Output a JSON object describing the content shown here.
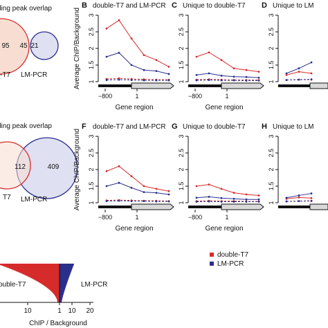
{
  "colors": {
    "double_t7": "#d62b2b",
    "lm_pcr": "#2b2f8c",
    "venn_left_fill": "#f8ded2",
    "venn_right_fill": "#d9daf0",
    "venn_left_stroke": "#d62b2b",
    "venn_right_stroke": "#2b2f8c",
    "gene_bar": "#111111",
    "gene_arrow_fill": "#d9d9d9"
  },
  "venn_top": {
    "title": "ding peak overlap",
    "left_count": "95",
    "overlap_count": "45",
    "right_count": "21",
    "left_label": "-T7",
    "right_label": "LM-PCR"
  },
  "venn_bottom": {
    "title": "ding peak overlap",
    "overlap_count": "112",
    "right_count": "409",
    "left_label": "T7",
    "right_label": "LM-PCR"
  },
  "legend": {
    "items": [
      {
        "label": "double-T7",
        "color": "#d62b2b"
      },
      {
        "label": "LM-PCR",
        "color": "#2b2f8c"
      }
    ]
  },
  "chart_data": [
    {
      "type": "line",
      "panel_letter": "B",
      "title": "double-T7 and LM-PCR",
      "xlabel": "Gene region",
      "ylabel": "Average ChIP/Background",
      "x_tick_labels": [
        "−800",
        "1"
      ],
      "y_ticks": [
        1,
        1.5,
        2,
        2.5,
        3
      ],
      "ylim": [
        1,
        3
      ],
      "series": [
        {
          "color": "#d62b2b",
          "values": [
            2.6,
            2.85,
            2.3,
            1.8,
            1.65,
            1.45
          ]
        },
        {
          "color": "#2b2f8c",
          "values": [
            1.75,
            1.87,
            1.5,
            1.35,
            1.32,
            1.23
          ]
        },
        {
          "color": "#d62b2b",
          "dashed": true,
          "values": [
            1.08,
            1.1,
            1.08,
            1.07,
            1.06,
            1.06
          ]
        },
        {
          "color": "#2b2f8c",
          "dashed": true,
          "values": [
            1.05,
            1.06,
            1.05,
            1.04,
            1.04,
            1.04
          ]
        }
      ]
    },
    {
      "type": "line",
      "panel_letter": "C",
      "title": "Unique to double-T7",
      "xlabel": "Gene region",
      "x_tick_labels": [
        "−800",
        "1"
      ],
      "y_ticks": [
        1,
        1.5,
        2,
        2.5,
        3
      ],
      "ylim": [
        1,
        3
      ],
      "series": [
        {
          "color": "#d62b2b",
          "values": [
            1.75,
            1.88,
            1.65,
            1.4,
            1.35,
            1.3
          ]
        },
        {
          "color": "#2b2f8c",
          "values": [
            1.2,
            1.25,
            1.18,
            1.15,
            1.14,
            1.12
          ]
        },
        {
          "color": "#d62b2b",
          "dashed": true,
          "values": [
            1.06,
            1.07,
            1.06,
            1.05,
            1.05,
            1.05
          ]
        },
        {
          "color": "#2b2f8c",
          "dashed": true,
          "values": [
            1.04,
            1.05,
            1.04,
            1.04,
            1.03,
            1.03
          ]
        }
      ]
    },
    {
      "type": "line",
      "panel_letter": "D",
      "title": "Unique to LM",
      "x_tick_labels": [],
      "y_ticks": [
        1,
        1.5,
        2,
        2.5,
        3
      ],
      "ylim": [
        1,
        3
      ],
      "series": [
        {
          "color": "#d62b2b",
          "values": [
            1.2,
            1.3,
            1.25
          ]
        },
        {
          "color": "#2b2f8c",
          "values": [
            1.25,
            1.4,
            1.58
          ]
        },
        {
          "color": "#d62b2b",
          "dashed": true,
          "values": [
            1.05,
            1.06,
            1.06
          ]
        },
        {
          "color": "#2b2f8c",
          "dashed": true,
          "values": [
            1.05,
            1.06,
            1.07
          ]
        }
      ]
    },
    {
      "type": "line",
      "panel_letter": "F",
      "title": "double-T7 and LM-PCR",
      "xlabel": "Gene region",
      "ylabel": "Average ChIP/Background",
      "x_tick_labels": [
        "−800",
        "1"
      ],
      "y_ticks": [
        1,
        1.5,
        2,
        2.5,
        3
      ],
      "ylim": [
        1,
        3
      ],
      "series": [
        {
          "color": "#d62b2b",
          "values": [
            1.95,
            2.1,
            1.8,
            1.5,
            1.42,
            1.35
          ]
        },
        {
          "color": "#2b2f8c",
          "values": [
            1.5,
            1.6,
            1.45,
            1.32,
            1.3,
            1.25
          ]
        },
        {
          "color": "#d62b2b",
          "dashed": true,
          "values": [
            1.07,
            1.08,
            1.07,
            1.06,
            1.06,
            1.05
          ]
        },
        {
          "color": "#2b2f8c",
          "dashed": true,
          "values": [
            1.05,
            1.06,
            1.05,
            1.05,
            1.04,
            1.04
          ]
        }
      ]
    },
    {
      "type": "line",
      "panel_letter": "G",
      "title": "Unique to double-T7",
      "xlabel": "Gene region",
      "x_tick_labels": [
        "−800",
        "1"
      ],
      "y_ticks": [
        1,
        1.5,
        2,
        2.5,
        3
      ],
      "ylim": [
        1,
        3
      ],
      "series": [
        {
          "color": "#d62b2b",
          "values": [
            1.5,
            1.55,
            1.42,
            1.3,
            1.25,
            1.22
          ]
        },
        {
          "color": "#2b2f8c",
          "values": [
            1.15,
            1.18,
            1.14,
            1.12,
            1.1,
            1.1
          ]
        },
        {
          "color": "#d62b2b",
          "dashed": true,
          "values": [
            1.05,
            1.06,
            1.05,
            1.05,
            1.04,
            1.04
          ]
        },
        {
          "color": "#2b2f8c",
          "dashed": true,
          "values": [
            1.03,
            1.04,
            1.03,
            1.03,
            1.03,
            1.03
          ]
        }
      ]
    },
    {
      "type": "line",
      "panel_letter": "H",
      "title": "Unique to LM",
      "x_tick_labels": [],
      "y_ticks": [
        1,
        1.5,
        2,
        2.5,
        3
      ],
      "ylim": [
        1,
        3
      ],
      "series": [
        {
          "color": "#d62b2b",
          "values": [
            1.12,
            1.16,
            1.14
          ]
        },
        {
          "color": "#2b2f8c",
          "values": [
            1.15,
            1.22,
            1.28
          ]
        },
        {
          "color": "#d62b2b",
          "dashed": true,
          "values": [
            1.04,
            1.05,
            1.05
          ]
        },
        {
          "color": "#2b2f8c",
          "dashed": true,
          "values": [
            1.04,
            1.05,
            1.06
          ]
        }
      ]
    },
    {
      "type": "bar",
      "orientation": "horizontal",
      "xlabel": "ChIP / Background",
      "x_tick_labels": [
        "10",
        "1",
        "10",
        "20"
      ],
      "left_label": "ouble-T7",
      "right_label": "LM-PCR",
      "left_series": {
        "name": "double-T7",
        "color": "#d62b2b",
        "max_value": 30
      },
      "right_series": {
        "name": "LM-PCR",
        "color": "#2b2f8c",
        "max_value": 4
      }
    }
  ]
}
